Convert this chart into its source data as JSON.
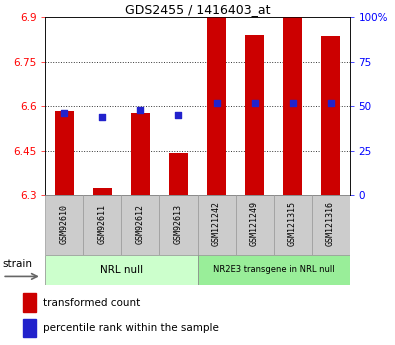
{
  "title": "GDS2455 / 1416403_at",
  "samples": [
    "GSM92610",
    "GSM92611",
    "GSM92612",
    "GSM92613",
    "GSM121242",
    "GSM121249",
    "GSM121315",
    "GSM121316"
  ],
  "red_values": [
    6.585,
    6.325,
    6.575,
    6.44,
    6.9,
    6.84,
    6.9,
    6.835
  ],
  "blue_values": [
    46,
    44,
    48,
    45,
    52,
    52,
    52,
    52
  ],
  "ylim_left": [
    6.3,
    6.9
  ],
  "ylim_right": [
    0,
    100
  ],
  "yticks_left": [
    6.3,
    6.45,
    6.6,
    6.75,
    6.9
  ],
  "yticks_right": [
    0,
    25,
    50,
    75,
    100
  ],
  "ytick_labels_right": [
    "0",
    "25",
    "50",
    "75",
    "100%"
  ],
  "group1_label": "NRL null",
  "group2_label": "NR2E3 transgene in NRL null",
  "strain_label": "strain",
  "legend_red": "transformed count",
  "legend_blue": "percentile rank within the sample",
  "bar_width": 0.5,
  "red_color": "#cc0000",
  "blue_color": "#2222cc",
  "group1_bg": "#ccffcc",
  "group2_bg": "#99ee99",
  "tick_bg": "#cccccc",
  "base_value": 6.3,
  "grid_lines": [
    6.45,
    6.6,
    6.75
  ],
  "title_fontsize": 9,
  "axis_fontsize": 7.5,
  "label_fontsize": 6,
  "group_fontsize": 7.5
}
